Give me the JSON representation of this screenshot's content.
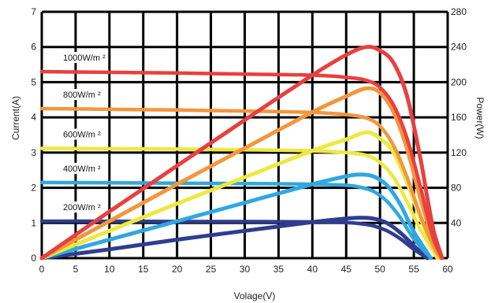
{
  "chart_data": {
    "type": "line",
    "title": "",
    "xlabel": "Volage(V)",
    "ylabel": "Current(A)",
    "y2label": "Power(W)",
    "xlim": [
      0,
      60
    ],
    "ylim": [
      0,
      7
    ],
    "y2lim": [
      0,
      280
    ],
    "xticks": [
      "0",
      "5",
      "10",
      "15",
      "20",
      "25",
      "30",
      "35",
      "40",
      "45",
      "50",
      "55",
      "60"
    ],
    "yticks": [
      "0",
      "1",
      "2",
      "3",
      "4",
      "5",
      "6",
      "7"
    ],
    "y2ticks": [
      "40",
      "80",
      "120",
      "160",
      "200",
      "240",
      "280"
    ],
    "grid": true,
    "series": [
      {
        "name": "1000W/m ²",
        "color": "#e8403f",
        "current": {
          "x": [
            0,
            10,
            20,
            30,
            40,
            45,
            48,
            50,
            52,
            54,
            56,
            57,
            58,
            59.2
          ],
          "y": [
            5.3,
            5.28,
            5.26,
            5.23,
            5.2,
            5.14,
            5.05,
            4.85,
            4.35,
            3.4,
            2.0,
            1.2,
            0.5,
            0
          ]
        },
        "power": {
          "x": [
            0,
            10,
            20,
            30,
            40,
            45,
            48,
            50,
            52,
            54,
            56,
            57,
            58,
            59.2
          ],
          "y": [
            0,
            53,
            105,
            157,
            208,
            231,
            240,
            236,
            222,
            184,
            112,
            68,
            29,
            0
          ]
        }
      },
      {
        "name": "800W/m ²",
        "color": "#f3963c",
        "current": {
          "x": [
            0,
            10,
            20,
            30,
            40,
            45,
            48,
            50,
            52,
            54,
            56,
            58,
            59
          ],
          "y": [
            4.25,
            4.23,
            4.21,
            4.18,
            4.14,
            4.08,
            3.98,
            3.75,
            3.2,
            2.3,
            1.2,
            0.3,
            0
          ]
        },
        "power": {
          "x": [
            0,
            10,
            20,
            30,
            40,
            45,
            48,
            50,
            52,
            54,
            56,
            58,
            59
          ],
          "y": [
            0,
            42,
            84,
            125,
            166,
            184,
            193,
            188,
            166,
            124,
            67,
            17,
            0
          ]
        }
      },
      {
        "name": "600W/m ²",
        "color": "#eee840",
        "current": {
          "x": [
            0,
            10,
            20,
            30,
            40,
            45,
            48,
            50,
            52,
            54,
            56,
            58.5
          ],
          "y": [
            3.12,
            3.11,
            3.1,
            3.08,
            3.05,
            3.0,
            2.92,
            2.72,
            2.3,
            1.6,
            0.8,
            0
          ]
        },
        "power": {
          "x": [
            0,
            10,
            20,
            30,
            40,
            45,
            48,
            50,
            52,
            54,
            56,
            58.5
          ],
          "y": [
            0,
            31,
            62,
            92,
            122,
            135,
            143,
            136,
            120,
            86,
            45,
            0
          ]
        }
      },
      {
        "name": "400W/m ²",
        "color": "#2fa8df",
        "current": {
          "x": [
            0,
            10,
            20,
            30,
            40,
            45,
            47,
            49,
            51,
            53,
            55,
            57.5
          ],
          "y": [
            2.15,
            2.14,
            2.13,
            2.12,
            2.1,
            2.07,
            2.02,
            1.9,
            1.62,
            1.15,
            0.55,
            0
          ]
        },
        "power": {
          "x": [
            0,
            10,
            20,
            30,
            40,
            45,
            47,
            49,
            51,
            53,
            55,
            57.5
          ],
          "y": [
            0,
            21,
            42,
            63,
            84,
            93,
            95,
            93,
            83,
            61,
            30,
            0
          ]
        }
      },
      {
        "name": "200W/m ²",
        "color": "#2f3d8f",
        "current": {
          "x": [
            0,
            10,
            20,
            30,
            40,
            45,
            47,
            49,
            51,
            53,
            55,
            57
          ],
          "y": [
            1.05,
            1.05,
            1.04,
            1.04,
            1.03,
            1.01,
            0.98,
            0.92,
            0.78,
            0.55,
            0.25,
            0
          ]
        },
        "power": {
          "x": [
            0,
            10,
            20,
            30,
            40,
            45,
            47,
            49,
            51,
            53,
            55,
            57
          ],
          "y": [
            0,
            10,
            21,
            31,
            41,
            45,
            46,
            45,
            40,
            29,
            14,
            0
          ]
        }
      }
    ]
  }
}
